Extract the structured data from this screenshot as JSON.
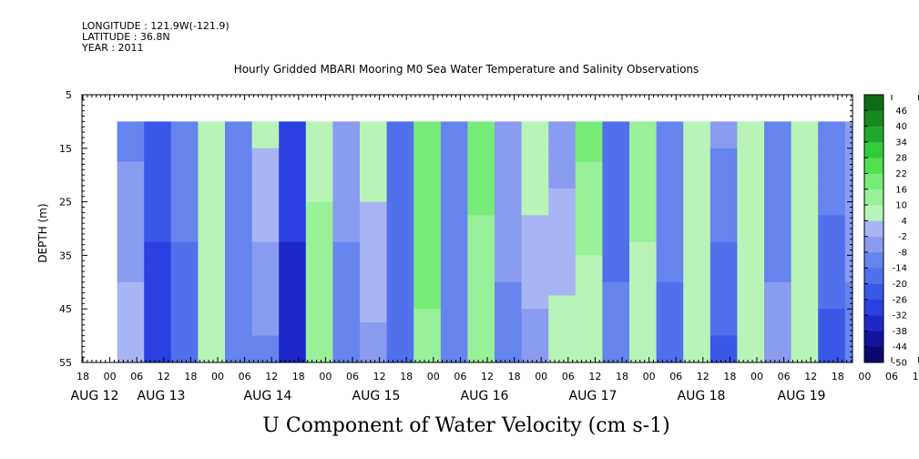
{
  "header": {
    "longitude": "LONGITUDE : 121.9W(-121.9)",
    "latitude": "LATITUDE : 36.8N",
    "year": "YEAR : 2011"
  },
  "chart_data": {
    "type": "heatmap",
    "title": "Hourly Gridded MBARI Mooring M0 Sea Water Temperature and Salinity Observations",
    "xlabel": "U Component of Water Velocity (cm s-1)",
    "ylabel": "DEPTH (m)",
    "ylim": [
      55,
      5
    ],
    "yticks": [
      5,
      15,
      25,
      35,
      45,
      55
    ],
    "data_depth_range": [
      10,
      55
    ],
    "x_hour_ticks": [
      "18",
      "00",
      "06",
      "12",
      "18",
      "00",
      "06",
      "12",
      "18",
      "00",
      "06",
      "12",
      "18",
      "00",
      "06",
      "12",
      "18",
      "00",
      "06",
      "12",
      "18",
      "00",
      "06",
      "12",
      "18",
      "00",
      "06",
      "12",
      "18",
      "00",
      "06",
      "12",
      "18"
    ],
    "x_date_labels": [
      "AUG 12",
      "AUG 13",
      "AUG 14",
      "AUG 15",
      "AUG 16",
      "AUG 17",
      "AUG 18",
      "AUG 19"
    ],
    "colorbar": {
      "levels": [
        -50,
        -44,
        -38,
        -32,
        -26,
        -20,
        -14,
        -8,
        -2,
        4,
        10,
        16,
        22,
        28,
        34,
        40,
        46
      ],
      "colors": [
        "#0a0a6e",
        "#12129a",
        "#1e28c8",
        "#2a40e0",
        "#3a58e8",
        "#5070ec",
        "#6684ee",
        "#8a9cf0",
        "#a8b4f4",
        "#b8f4b8",
        "#98f098",
        "#78ec78",
        "#50e050",
        "#30cc40",
        "#20a830",
        "#188820",
        "#0e6a14"
      ]
    },
    "columns": [
      {
        "time": "AUG 13 00",
        "u_top": -10,
        "u_bottom": 2
      },
      {
        "time": "AUG 13 06",
        "u_top": -22,
        "u_bottom": -30
      },
      {
        "time": "AUG 13 12",
        "u_top": -8,
        "u_bottom": -20
      },
      {
        "time": "AUG 13 18",
        "u_top": 4,
        "u_bottom": 6
      },
      {
        "time": "AUG 14 00",
        "u_top": -14,
        "u_bottom": -8
      },
      {
        "time": "AUG 14 06",
        "u_top": 6,
        "u_bottom": -10
      },
      {
        "time": "AUG 14 12",
        "u_top": -28,
        "u_bottom": -36
      },
      {
        "time": "AUG 14 18",
        "u_top": 8,
        "u_bottom": 14
      },
      {
        "time": "AUG 15 00",
        "u_top": -6,
        "u_bottom": -10
      },
      {
        "time": "AUG 15 06",
        "u_top": 8,
        "u_bottom": -4
      },
      {
        "time": "AUG 15 12",
        "u_top": -14,
        "u_bottom": -18
      },
      {
        "time": "AUG 15 18",
        "u_top": 22,
        "u_bottom": 14
      },
      {
        "time": "AUG 16 00",
        "u_top": -8,
        "u_bottom": -12
      },
      {
        "time": "AUG 16 06",
        "u_top": 20,
        "u_bottom": 10
      },
      {
        "time": "AUG 16 12",
        "u_top": -4,
        "u_bottom": -10
      },
      {
        "time": "AUG 16 18",
        "u_top": 10,
        "u_bottom": -6
      },
      {
        "time": "AUG 17 00",
        "u_top": -6,
        "u_bottom": 8
      },
      {
        "time": "AUG 17 06",
        "u_top": 18,
        "u_bottom": 4
      },
      {
        "time": "AUG 17 12",
        "u_top": -18,
        "u_bottom": -12
      },
      {
        "time": "AUG 17 18",
        "u_top": 14,
        "u_bottom": 6
      },
      {
        "time": "AUG 18 00",
        "u_top": -10,
        "u_bottom": -16
      },
      {
        "time": "AUG 18 06",
        "u_top": 8,
        "u_bottom": 10
      },
      {
        "time": "AUG 18 12",
        "u_top": -6,
        "u_bottom": -22
      },
      {
        "time": "AUG 18 18",
        "u_top": 4,
        "u_bottom": 8
      },
      {
        "time": "AUG 19 00",
        "u_top": -12,
        "u_bottom": -6
      },
      {
        "time": "AUG 19 06",
        "u_top": 10,
        "u_bottom": 6
      },
      {
        "time": "AUG 19 12",
        "u_top": -8,
        "u_bottom": -24
      },
      {
        "time": "AUG 19 18",
        "u_top": -4,
        "u_bottom": -10
      }
    ]
  }
}
